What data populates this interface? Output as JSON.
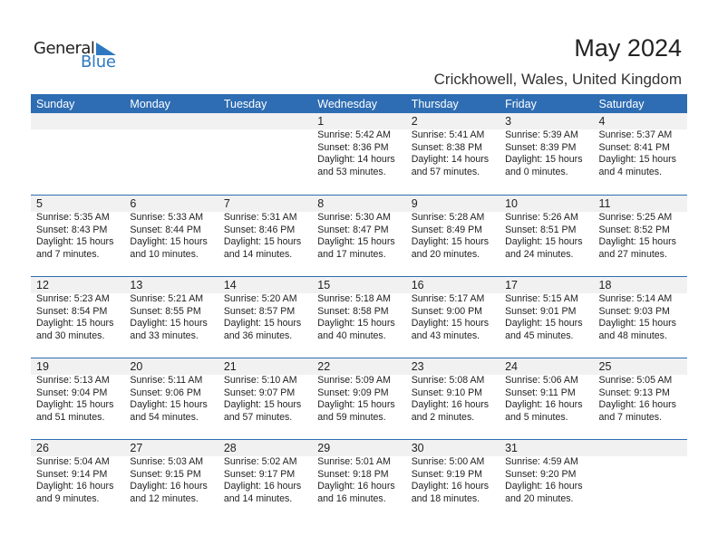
{
  "logo": {
    "general": "General",
    "blue": "Blue",
    "accent": "#2E78C2"
  },
  "title": "May 2024",
  "location": "Crickhowell, Wales, United Kingdom",
  "colors": {
    "header": "#2E6DB3",
    "date_row": "#F1F1F1"
  },
  "days": [
    "Sunday",
    "Monday",
    "Tuesday",
    "Wednesday",
    "Thursday",
    "Friday",
    "Saturday"
  ],
  "weeks": [
    [
      null,
      null,
      null,
      {
        "day": "1",
        "sunrise": "Sunrise: 5:42 AM",
        "sunset": "Sunset: 8:36 PM",
        "daylight1": "Daylight: 14 hours",
        "daylight2": "and 53 minutes."
      },
      {
        "day": "2",
        "sunrise": "Sunrise: 5:41 AM",
        "sunset": "Sunset: 8:38 PM",
        "daylight1": "Daylight: 14 hours",
        "daylight2": "and 57 minutes."
      },
      {
        "day": "3",
        "sunrise": "Sunrise: 5:39 AM",
        "sunset": "Sunset: 8:39 PM",
        "daylight1": "Daylight: 15 hours",
        "daylight2": "and 0 minutes."
      },
      {
        "day": "4",
        "sunrise": "Sunrise: 5:37 AM",
        "sunset": "Sunset: 8:41 PM",
        "daylight1": "Daylight: 15 hours",
        "daylight2": "and 4 minutes."
      }
    ],
    [
      {
        "day": "5",
        "sunrise": "Sunrise: 5:35 AM",
        "sunset": "Sunset: 8:43 PM",
        "daylight1": "Daylight: 15 hours",
        "daylight2": "and 7 minutes."
      },
      {
        "day": "6",
        "sunrise": "Sunrise: 5:33 AM",
        "sunset": "Sunset: 8:44 PM",
        "daylight1": "Daylight: 15 hours",
        "daylight2": "and 10 minutes."
      },
      {
        "day": "7",
        "sunrise": "Sunrise: 5:31 AM",
        "sunset": "Sunset: 8:46 PM",
        "daylight1": "Daylight: 15 hours",
        "daylight2": "and 14 minutes."
      },
      {
        "day": "8",
        "sunrise": "Sunrise: 5:30 AM",
        "sunset": "Sunset: 8:47 PM",
        "daylight1": "Daylight: 15 hours",
        "daylight2": "and 17 minutes."
      },
      {
        "day": "9",
        "sunrise": "Sunrise: 5:28 AM",
        "sunset": "Sunset: 8:49 PM",
        "daylight1": "Daylight: 15 hours",
        "daylight2": "and 20 minutes."
      },
      {
        "day": "10",
        "sunrise": "Sunrise: 5:26 AM",
        "sunset": "Sunset: 8:51 PM",
        "daylight1": "Daylight: 15 hours",
        "daylight2": "and 24 minutes."
      },
      {
        "day": "11",
        "sunrise": "Sunrise: 5:25 AM",
        "sunset": "Sunset: 8:52 PM",
        "daylight1": "Daylight: 15 hours",
        "daylight2": "and 27 minutes."
      }
    ],
    [
      {
        "day": "12",
        "sunrise": "Sunrise: 5:23 AM",
        "sunset": "Sunset: 8:54 PM",
        "daylight1": "Daylight: 15 hours",
        "daylight2": "and 30 minutes."
      },
      {
        "day": "13",
        "sunrise": "Sunrise: 5:21 AM",
        "sunset": "Sunset: 8:55 PM",
        "daylight1": "Daylight: 15 hours",
        "daylight2": "and 33 minutes."
      },
      {
        "day": "14",
        "sunrise": "Sunrise: 5:20 AM",
        "sunset": "Sunset: 8:57 PM",
        "daylight1": "Daylight: 15 hours",
        "daylight2": "and 36 minutes."
      },
      {
        "day": "15",
        "sunrise": "Sunrise: 5:18 AM",
        "sunset": "Sunset: 8:58 PM",
        "daylight1": "Daylight: 15 hours",
        "daylight2": "and 40 minutes."
      },
      {
        "day": "16",
        "sunrise": "Sunrise: 5:17 AM",
        "sunset": "Sunset: 9:00 PM",
        "daylight1": "Daylight: 15 hours",
        "daylight2": "and 43 minutes."
      },
      {
        "day": "17",
        "sunrise": "Sunrise: 5:15 AM",
        "sunset": "Sunset: 9:01 PM",
        "daylight1": "Daylight: 15 hours",
        "daylight2": "and 45 minutes."
      },
      {
        "day": "18",
        "sunrise": "Sunrise: 5:14 AM",
        "sunset": "Sunset: 9:03 PM",
        "daylight1": "Daylight: 15 hours",
        "daylight2": "and 48 minutes."
      }
    ],
    [
      {
        "day": "19",
        "sunrise": "Sunrise: 5:13 AM",
        "sunset": "Sunset: 9:04 PM",
        "daylight1": "Daylight: 15 hours",
        "daylight2": "and 51 minutes."
      },
      {
        "day": "20",
        "sunrise": "Sunrise: 5:11 AM",
        "sunset": "Sunset: 9:06 PM",
        "daylight1": "Daylight: 15 hours",
        "daylight2": "and 54 minutes."
      },
      {
        "day": "21",
        "sunrise": "Sunrise: 5:10 AM",
        "sunset": "Sunset: 9:07 PM",
        "daylight1": "Daylight: 15 hours",
        "daylight2": "and 57 minutes."
      },
      {
        "day": "22",
        "sunrise": "Sunrise: 5:09 AM",
        "sunset": "Sunset: 9:09 PM",
        "daylight1": "Daylight: 15 hours",
        "daylight2": "and 59 minutes."
      },
      {
        "day": "23",
        "sunrise": "Sunrise: 5:08 AM",
        "sunset": "Sunset: 9:10 PM",
        "daylight1": "Daylight: 16 hours",
        "daylight2": "and 2 minutes."
      },
      {
        "day": "24",
        "sunrise": "Sunrise: 5:06 AM",
        "sunset": "Sunset: 9:11 PM",
        "daylight1": "Daylight: 16 hours",
        "daylight2": "and 5 minutes."
      },
      {
        "day": "25",
        "sunrise": "Sunrise: 5:05 AM",
        "sunset": "Sunset: 9:13 PM",
        "daylight1": "Daylight: 16 hours",
        "daylight2": "and 7 minutes."
      }
    ],
    [
      {
        "day": "26",
        "sunrise": "Sunrise: 5:04 AM",
        "sunset": "Sunset: 9:14 PM",
        "daylight1": "Daylight: 16 hours",
        "daylight2": "and 9 minutes."
      },
      {
        "day": "27",
        "sunrise": "Sunrise: 5:03 AM",
        "sunset": "Sunset: 9:15 PM",
        "daylight1": "Daylight: 16 hours",
        "daylight2": "and 12 minutes."
      },
      {
        "day": "28",
        "sunrise": "Sunrise: 5:02 AM",
        "sunset": "Sunset: 9:17 PM",
        "daylight1": "Daylight: 16 hours",
        "daylight2": "and 14 minutes."
      },
      {
        "day": "29",
        "sunrise": "Sunrise: 5:01 AM",
        "sunset": "Sunset: 9:18 PM",
        "daylight1": "Daylight: 16 hours",
        "daylight2": "and 16 minutes."
      },
      {
        "day": "30",
        "sunrise": "Sunrise: 5:00 AM",
        "sunset": "Sunset: 9:19 PM",
        "daylight1": "Daylight: 16 hours",
        "daylight2": "and 18 minutes."
      },
      {
        "day": "31",
        "sunrise": "Sunrise: 4:59 AM",
        "sunset": "Sunset: 9:20 PM",
        "daylight1": "Daylight: 16 hours",
        "daylight2": "and 20 minutes."
      },
      null
    ]
  ]
}
